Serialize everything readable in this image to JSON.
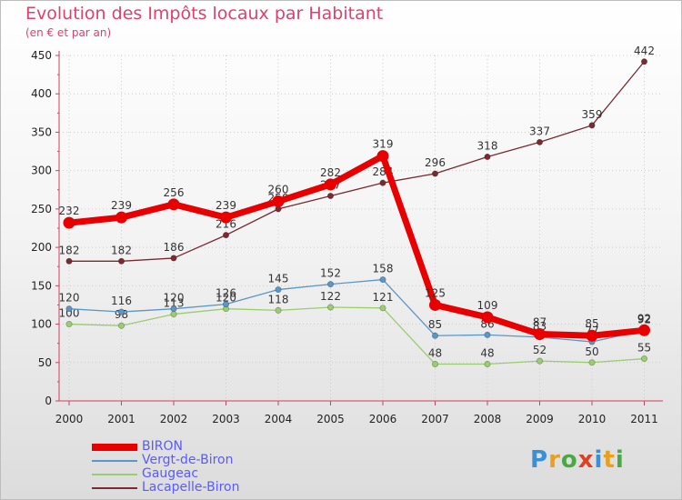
{
  "header": {
    "title": "Evolution des Impôts locaux par Habitant",
    "subtitle": "(en € et par an)"
  },
  "logo": {
    "letters": [
      "P",
      "r",
      "o",
      "x",
      "i",
      "t",
      "i"
    ],
    "colors": [
      "#3a8fd6",
      "#e8a020",
      "#4aa845",
      "#e04020",
      "#3a8fd6",
      "#e8a020",
      "#4aa845"
    ]
  },
  "chart_data": {
    "type": "line",
    "title": "Evolution des Impôts locaux par Habitant",
    "subtitle": "(en € et par an)",
    "xlabel": "",
    "ylabel": "",
    "ylim": [
      0,
      450
    ],
    "yticks": [
      0,
      50,
      100,
      150,
      200,
      250,
      300,
      350,
      400,
      450
    ],
    "categories": [
      "2000",
      "2001",
      "2002",
      "2003",
      "2004",
      "2005",
      "2006",
      "2007",
      "2008",
      "2009",
      "2010",
      "2011"
    ],
    "series": [
      {
        "name": "Lacapelle-Biron",
        "color": "#7a2a30",
        "values": [
          182,
          182,
          186,
          216,
          250,
          267,
          284,
          296,
          318,
          337,
          359,
          442
        ],
        "labels": [
          "182",
          "182",
          "186",
          "216",
          "250",
          "267",
          "284",
          "296",
          "318",
          "337",
          "359",
          "442"
        ]
      },
      {
        "name": "Gaugeac",
        "color": "#9acc70",
        "values": [
          100,
          98,
          113,
          120,
          118,
          122,
          121,
          48,
          48,
          52,
          50,
          55
        ],
        "labels": [
          "100",
          "98",
          "113",
          "120",
          "118",
          "122",
          "121",
          "48",
          "48",
          "52",
          "50",
          "55"
        ]
      },
      {
        "name": "Vergt-de-Biron",
        "color": "#5a96c8",
        "values": [
          120,
          116,
          120,
          126,
          145,
          152,
          158,
          85,
          86,
          83,
          77,
          92
        ],
        "labels": [
          "120",
          "116",
          "120",
          "126",
          "145",
          "152",
          "158",
          "85",
          "86",
          "83",
          "77",
          "92"
        ]
      },
      {
        "name": "BIRON",
        "color": "#e80000",
        "values": [
          232,
          239,
          256,
          239,
          260,
          282,
          319,
          125,
          109,
          87,
          85,
          92
        ],
        "labels": [
          "232",
          "239",
          "256",
          "239",
          "260",
          "282",
          "319",
          "125",
          "109",
          "87",
          "85",
          "92"
        ]
      }
    ],
    "legend": [
      "BIRON",
      "Vergt-de-Biron",
      "Gaugeac",
      "Lacapelle-Biron"
    ],
    "legend_position": "bottom-left",
    "grid": true
  }
}
